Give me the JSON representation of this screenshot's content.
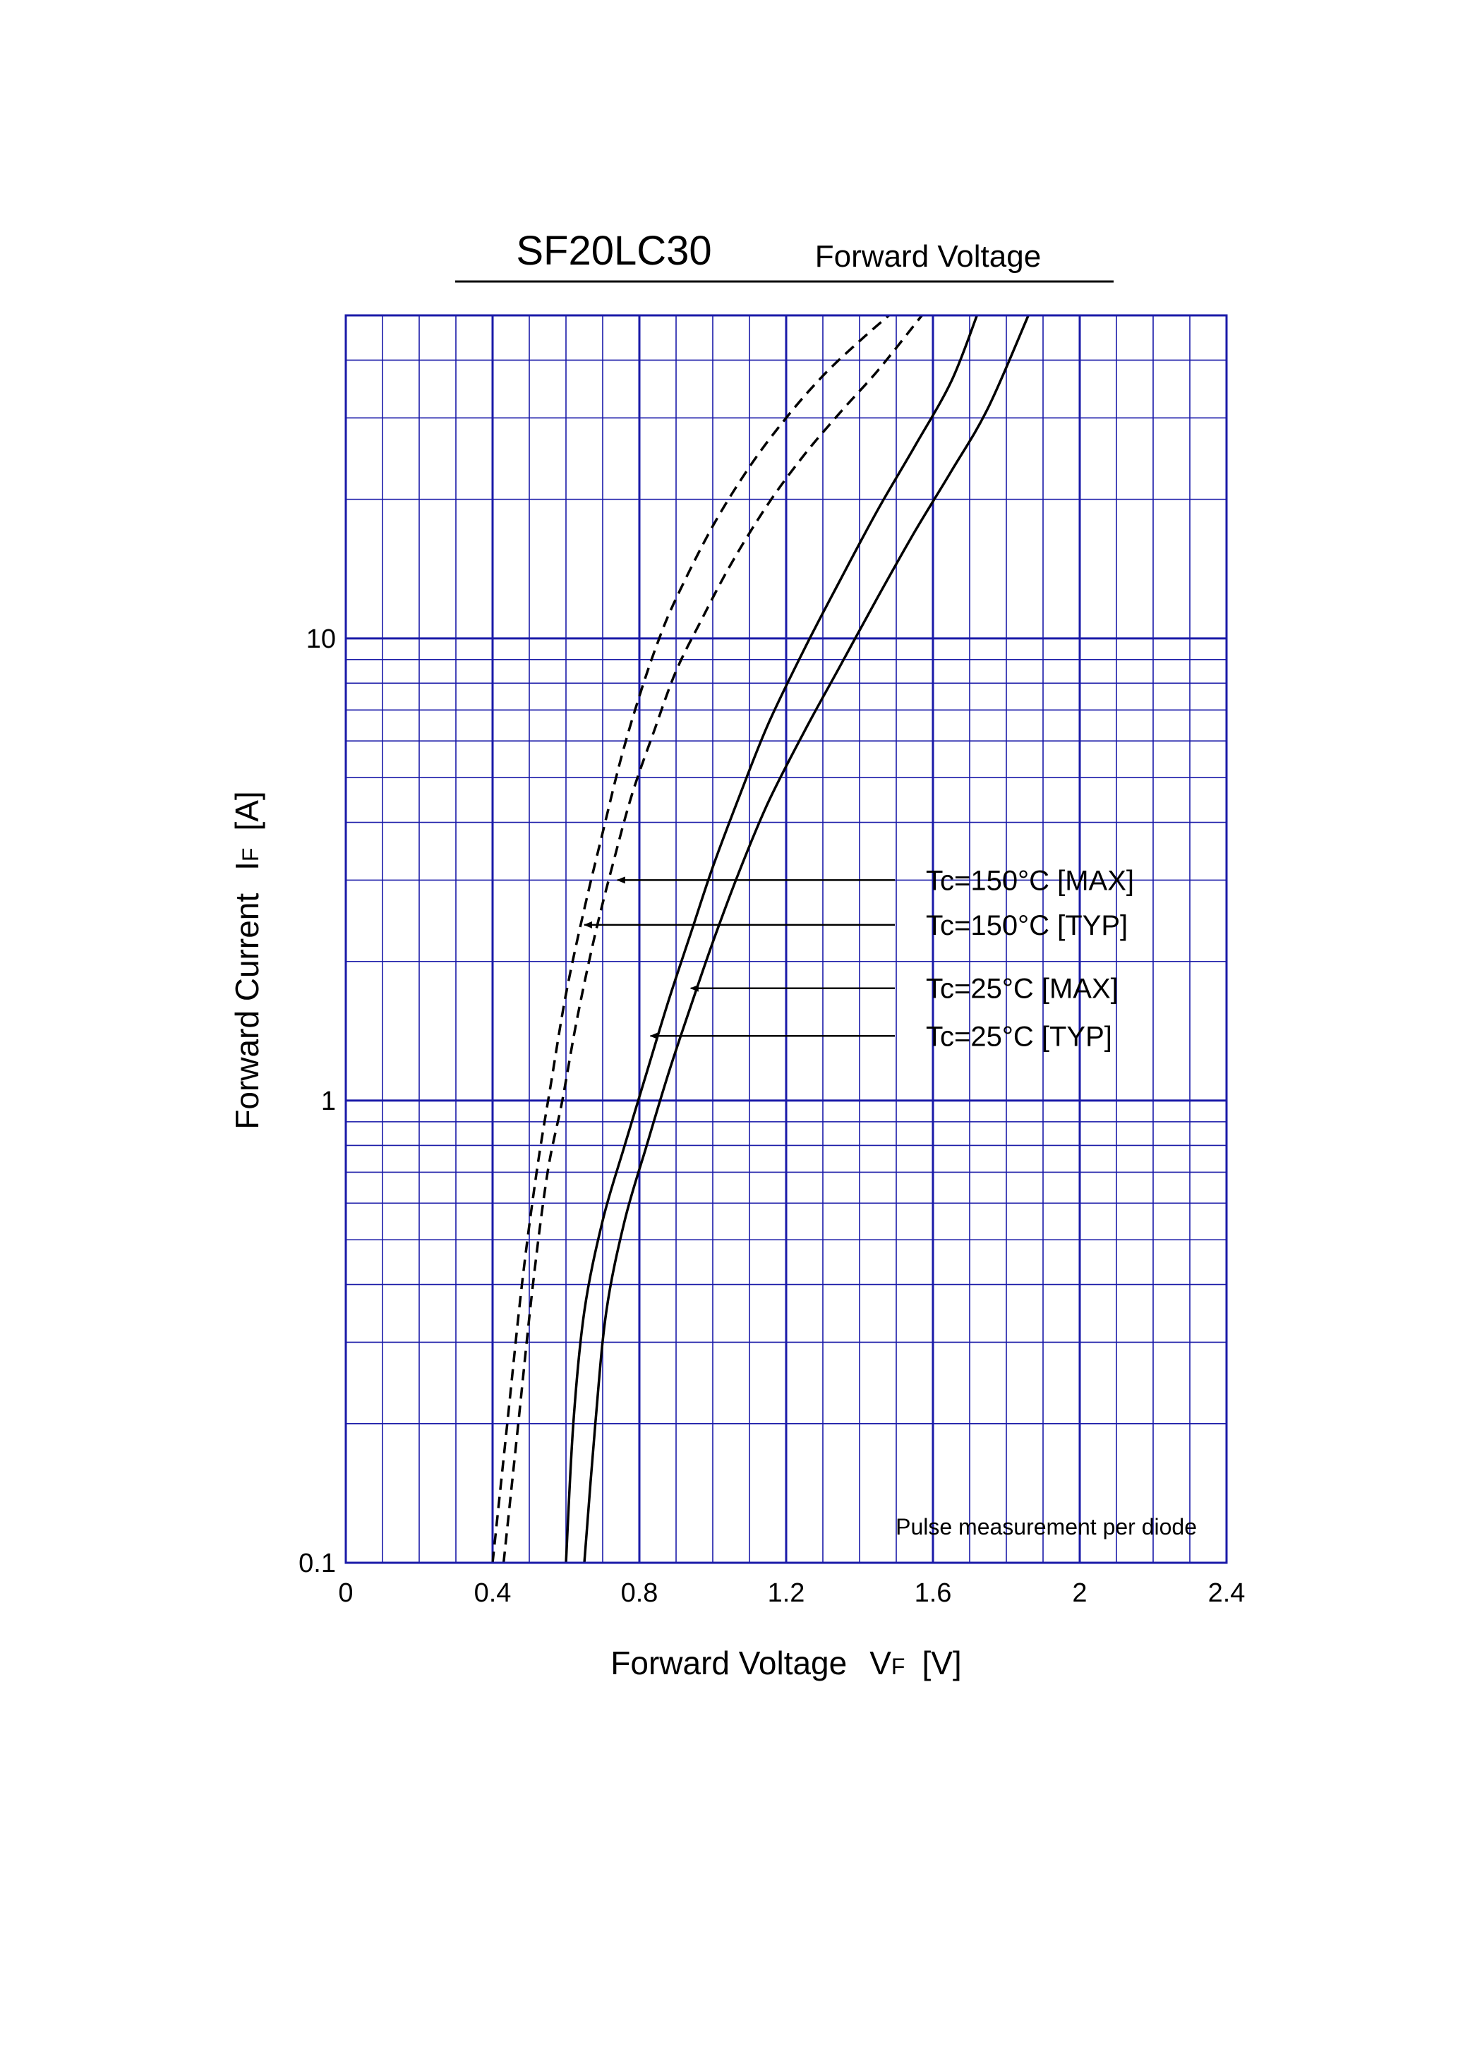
{
  "header": {
    "part_number": "SF20LC30",
    "title": "Forward Voltage"
  },
  "chart_data": {
    "type": "line",
    "xlabel": "Forward Voltage",
    "xlabel_symbol": "V",
    "xlabel_sub": "F",
    "xlabel_unit": "[V]",
    "ylabel": "Forward Current",
    "ylabel_symbol": "I",
    "ylabel_sub": "F",
    "ylabel_unit": "[A]",
    "xlim": [
      0,
      2.4
    ],
    "ylim": [
      0.1,
      50
    ],
    "yscale": "log",
    "grid": true,
    "grid_color": "#1a1aa8",
    "x_ticks": [
      0,
      0.4,
      0.8,
      1.2,
      1.6,
      2,
      2.4
    ],
    "x_tick_labels": [
      "0",
      "0.4",
      "0.8",
      "1.2",
      "1.6",
      "2",
      "2.4"
    ],
    "y_ticks": [
      0.1,
      1,
      10
    ],
    "y_tick_labels": [
      "0.1",
      "1",
      "10"
    ],
    "note": "Pulse measurement per diode",
    "series": [
      {
        "name": "Tc=150°C [MAX]",
        "style": "dashed",
        "points": [
          [
            0.4,
            0.1
          ],
          [
            0.44,
            0.2
          ],
          [
            0.48,
            0.4
          ],
          [
            0.52,
            0.7
          ],
          [
            0.56,
            1.1
          ],
          [
            0.6,
            1.7
          ],
          [
            0.65,
            2.6
          ],
          [
            0.7,
            3.8
          ],
          [
            0.75,
            5.5
          ],
          [
            0.8,
            7.5
          ],
          [
            0.85,
            9.8
          ],
          [
            0.9,
            12.2
          ],
          [
            1.0,
            17.5
          ],
          [
            1.1,
            23.5
          ],
          [
            1.2,
            30
          ],
          [
            1.3,
            37
          ],
          [
            1.4,
            44
          ],
          [
            1.48,
            50
          ]
        ]
      },
      {
        "name": "Tc=150°C [TYP]",
        "style": "dashed",
        "points": [
          [
            0.43,
            0.1
          ],
          [
            0.47,
            0.2
          ],
          [
            0.51,
            0.4
          ],
          [
            0.55,
            0.7
          ],
          [
            0.59,
            1.0
          ],
          [
            0.63,
            1.5
          ],
          [
            0.68,
            2.3
          ],
          [
            0.73,
            3.3
          ],
          [
            0.78,
            4.6
          ],
          [
            0.84,
            6.3
          ],
          [
            0.9,
            8.5
          ],
          [
            0.97,
            11.0
          ],
          [
            1.05,
            14.5
          ],
          [
            1.15,
            19.5
          ],
          [
            1.25,
            25
          ],
          [
            1.35,
            31
          ],
          [
            1.45,
            38
          ],
          [
            1.57,
            50
          ]
        ]
      },
      {
        "name": "Tc=25°C [MAX]",
        "style": "solid",
        "points": [
          [
            0.6,
            0.1
          ],
          [
            0.62,
            0.2
          ],
          [
            0.65,
            0.35
          ],
          [
            0.7,
            0.55
          ],
          [
            0.76,
            0.8
          ],
          [
            0.82,
            1.15
          ],
          [
            0.88,
            1.65
          ],
          [
            0.94,
            2.3
          ],
          [
            1.0,
            3.2
          ],
          [
            1.07,
            4.5
          ],
          [
            1.15,
            6.5
          ],
          [
            1.25,
            9.5
          ],
          [
            1.35,
            13.5
          ],
          [
            1.45,
            19
          ],
          [
            1.55,
            26
          ],
          [
            1.65,
            36
          ],
          [
            1.72,
            50
          ]
        ]
      },
      {
        "name": "Tc=25°C [TYP]",
        "style": "solid",
        "points": [
          [
            0.65,
            0.1
          ],
          [
            0.68,
            0.2
          ],
          [
            0.71,
            0.35
          ],
          [
            0.76,
            0.55
          ],
          [
            0.82,
            0.8
          ],
          [
            0.88,
            1.15
          ],
          [
            0.94,
            1.6
          ],
          [
            1.0,
            2.2
          ],
          [
            1.07,
            3.1
          ],
          [
            1.15,
            4.4
          ],
          [
            1.25,
            6.3
          ],
          [
            1.35,
            8.8
          ],
          [
            1.45,
            12.3
          ],
          [
            1.55,
            17
          ],
          [
            1.65,
            23
          ],
          [
            1.75,
            31.5
          ],
          [
            1.86,
            50
          ]
        ]
      }
    ],
    "annotations": [
      {
        "label": "Tc=150°C [MAX]",
        "arrow_x": 0.74,
        "arrow_y": 3.0
      },
      {
        "label": "Tc=150°C [TYP]",
        "arrow_x": 0.65,
        "arrow_y": 2.4
      },
      {
        "label": "Tc=25°C [MAX]",
        "arrow_x": 0.94,
        "arrow_y": 1.75
      },
      {
        "label": "Tc=25°C [TYP]",
        "arrow_x": 0.83,
        "arrow_y": 1.38
      }
    ]
  }
}
